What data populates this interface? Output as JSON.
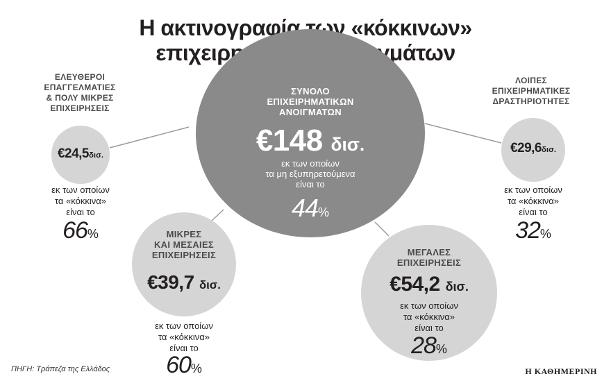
{
  "title": {
    "line1": "Η ακτινογραφία των «κόκκινων»",
    "line2": "επιχειρηματικών ανοιγμάτων"
  },
  "total": {
    "label": [
      "ΣΥΝΟΛΟ",
      "ΕΠΙΧΕΙΡΗΜΑΤΙΚΩΝ",
      "ΑΝΟΙΓΜΑΤΩΝ"
    ],
    "amount": "€148",
    "unit": "δισ.",
    "note": [
      "εκ των οποίων",
      "τα μη εξυπηρετούμενα",
      "είναι το"
    ],
    "percent": "44",
    "percent_sign": "%"
  },
  "segments": {
    "freelancers": {
      "label": [
        "ΕΛΕΥΘΕΡΟΙ",
        "ΕΠΑΓΓΕΛΜΑΤΙΕΣ",
        "& ΠΟΛΥ ΜΙΚΡΕΣ",
        "ΕΠΙΧΕΙΡΗΣΕΙΣ"
      ],
      "amount": "€24,5",
      "unit": "δισ.",
      "note": [
        "εκ των οποίων",
        "τα «κόκκινα»",
        "είναι το"
      ],
      "percent": "66",
      "percent_sign": "%"
    },
    "other": {
      "label": [
        "ΛΟΙΠΕΣ",
        "ΕΠΙΧΕΙΡΗΜΑΤΙΚΕΣ",
        "ΔΡΑΣΤΗΡΙΟΤΗΤΕΣ"
      ],
      "amount": "€29,6",
      "unit": "δισ.",
      "note": [
        "εκ των οποίων",
        "τα «κόκκινα»",
        "είναι το"
      ],
      "percent": "32",
      "percent_sign": "%"
    },
    "sme": {
      "label": [
        "ΜΙΚΡΕΣ",
        "ΚΑΙ ΜΕΣΑΙΕΣ",
        "ΕΠΙΧΕΙΡΗΣΕΙΣ"
      ],
      "amount": "€39,7",
      "unit": "δισ.",
      "note": [
        "εκ των οποίων",
        "τα «κόκκινα»",
        "είναι το"
      ],
      "percent": "60",
      "percent_sign": "%"
    },
    "large": {
      "label": [
        "ΜΕΓΑΛΕΣ",
        "ΕΠΙΧΕΙΡΗΣΕΙΣ"
      ],
      "amount": "€54,2",
      "unit": "δισ.",
      "note": [
        "εκ των οποίων",
        "τα «κόκκινα»",
        "είναι το"
      ],
      "percent": "28",
      "percent_sign": "%"
    }
  },
  "footer": {
    "source": "ΠΗΓΗ: Τράπεζα της Ελλάδος",
    "brand": "Η ΚΑΘΗΜΕΡΙΝΗ"
  },
  "colors": {
    "main_circle": "#8a8a8a",
    "small_circle": "#d5d5d5",
    "text": "#231f20"
  }
}
